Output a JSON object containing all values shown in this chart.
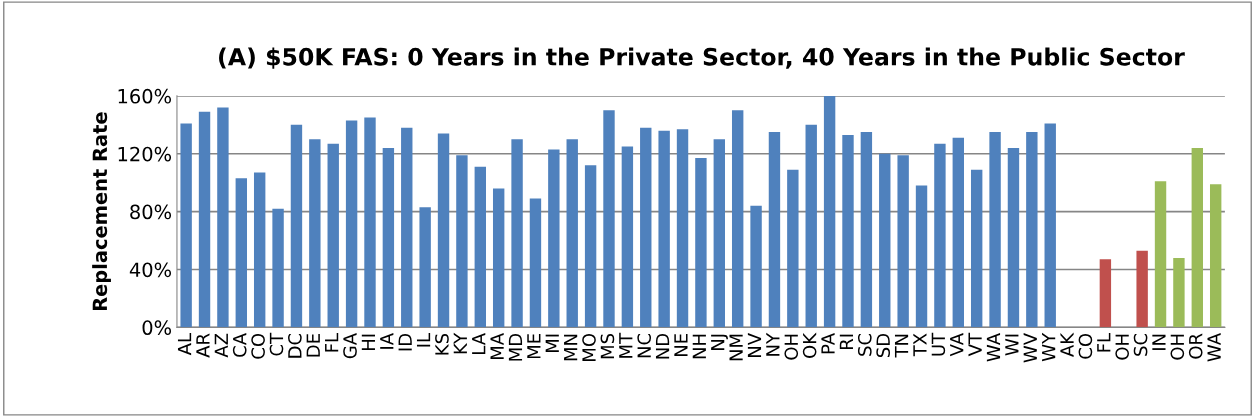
{
  "chart_data": {
    "type": "bar",
    "title": "(A) $50K FAS: 0 Years in the Private Sector, 40 Years in the Public Sector",
    "ylabel": "Replacement Rate",
    "categories": [
      "AL",
      "AR",
      "AZ",
      "CA",
      "CO",
      "CT",
      "DC",
      "DE",
      "FL",
      "GA",
      "HI",
      "IA",
      "ID",
      "IL",
      "KS",
      "KY",
      "LA",
      "MA",
      "MD",
      "ME",
      "MI",
      "MN",
      "MO",
      "MS",
      "MT",
      "NC",
      "ND",
      "NE",
      "NH",
      "NJ",
      "NM",
      "NV",
      "NY",
      "OH",
      "OK",
      "PA",
      "RI",
      "SC",
      "SD",
      "TN",
      "TX",
      "UT",
      "VA",
      "VT",
      "WA",
      "WI",
      "WV",
      "WY",
      "AK",
      "CO",
      "FL",
      "OH",
      "SC",
      "IN",
      "OH",
      "OR",
      "WA"
    ],
    "values": [
      141,
      149,
      152,
      103,
      107,
      82,
      140,
      130,
      127,
      143,
      145,
      124,
      138,
      83,
      134,
      119,
      111,
      96,
      130,
      89,
      123,
      130,
      112,
      150,
      125,
      138,
      136,
      137,
      117,
      130,
      150,
      84,
      135,
      109,
      140,
      160,
      133,
      135,
      120,
      119,
      98,
      127,
      131,
      109,
      135,
      124,
      135,
      141,
      null,
      null,
      47,
      null,
      53,
      101,
      48,
      124,
      99
    ],
    "colors": [
      "#4f81bd",
      "#4f81bd",
      "#4f81bd",
      "#4f81bd",
      "#4f81bd",
      "#4f81bd",
      "#4f81bd",
      "#4f81bd",
      "#4f81bd",
      "#4f81bd",
      "#4f81bd",
      "#4f81bd",
      "#4f81bd",
      "#4f81bd",
      "#4f81bd",
      "#4f81bd",
      "#4f81bd",
      "#4f81bd",
      "#4f81bd",
      "#4f81bd",
      "#4f81bd",
      "#4f81bd",
      "#4f81bd",
      "#4f81bd",
      "#4f81bd",
      "#4f81bd",
      "#4f81bd",
      "#4f81bd",
      "#4f81bd",
      "#4f81bd",
      "#4f81bd",
      "#4f81bd",
      "#4f81bd",
      "#4f81bd",
      "#4f81bd",
      "#4f81bd",
      "#4f81bd",
      "#4f81bd",
      "#4f81bd",
      "#4f81bd",
      "#4f81bd",
      "#4f81bd",
      "#4f81bd",
      "#4f81bd",
      "#4f81bd",
      "#4f81bd",
      "#4f81bd",
      "#4f81bd",
      "#c0504d",
      "#c0504d",
      "#c0504d",
      "#c0504d",
      "#c0504d",
      "#9bbb59",
      "#9bbb59",
      "#9bbb59",
      "#9bbb59"
    ],
    "ylim": [
      0,
      160
    ],
    "yticks": [
      {
        "value": 0,
        "label": "0%"
      },
      {
        "value": 40,
        "label": "40%"
      },
      {
        "value": 80,
        "label": "80%"
      },
      {
        "value": 120,
        "label": "120%"
      },
      {
        "value": 160,
        "label": "160%"
      }
    ],
    "grid": "y"
  }
}
